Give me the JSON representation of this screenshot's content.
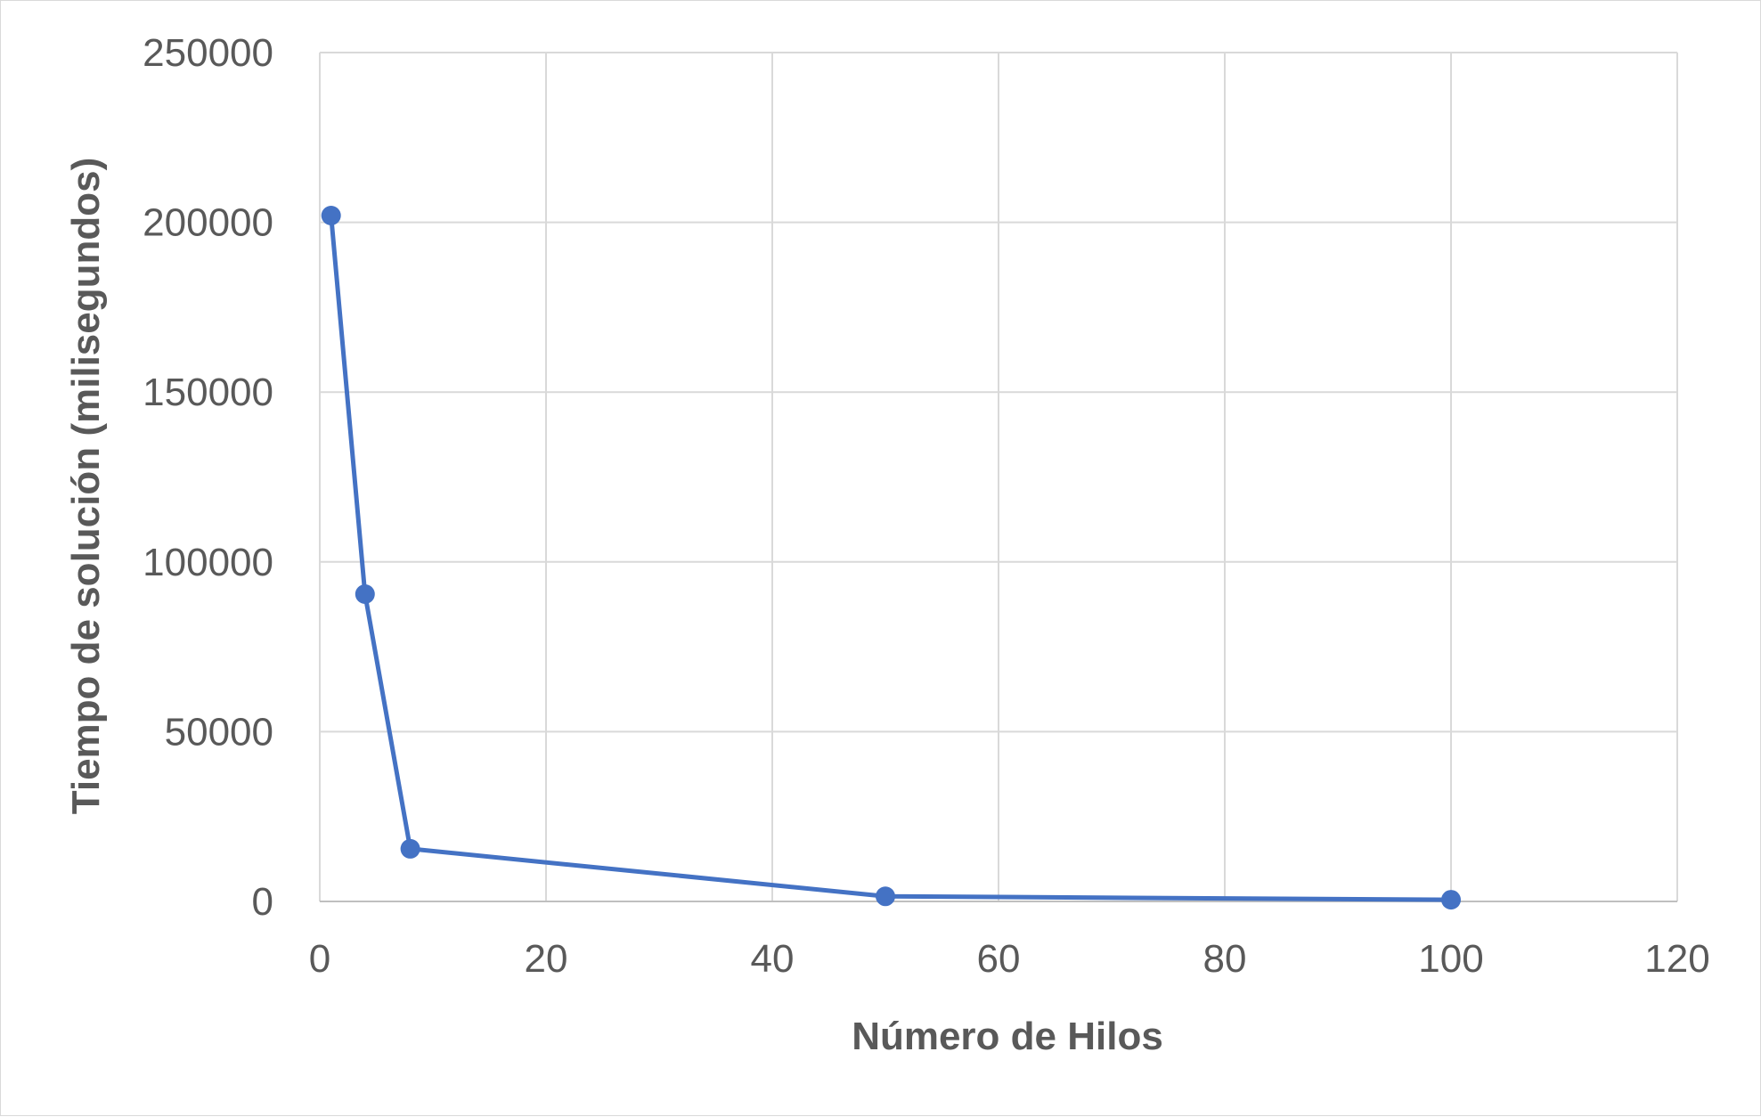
{
  "chart_data": {
    "type": "line",
    "title": "",
    "xlabel": "Número de Hilos",
    "ylabel": "Tiempo de solución (milisegundos)",
    "xlim": [
      0,
      120
    ],
    "ylim": [
      0,
      250000
    ],
    "x_ticks": [
      "0",
      "20",
      "40",
      "60",
      "80",
      "100",
      "120"
    ],
    "y_ticks": [
      "0",
      "50000",
      "100000",
      "150000",
      "200000",
      "250000"
    ],
    "grid": true,
    "legend": "none",
    "series": [
      {
        "color": "#4472c4",
        "x": [
          1,
          4,
          8,
          50,
          100
        ],
        "y": [
          202000,
          90500,
          15500,
          1500,
          500
        ]
      }
    ]
  }
}
